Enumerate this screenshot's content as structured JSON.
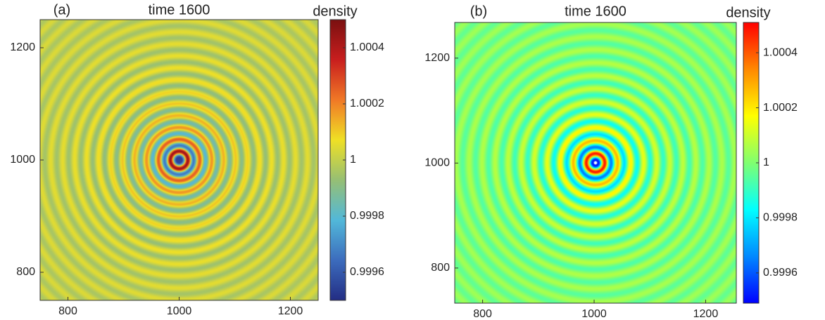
{
  "chart_data": [
    {
      "type": "heatmap",
      "panel_label": "(a)",
      "title": "time 1600",
      "colorbar_label": "density",
      "xlim": [
        750,
        1250
      ],
      "ylim": [
        750,
        1250
      ],
      "xticks": [
        800,
        1000,
        1200
      ],
      "yticks": [
        800,
        1000,
        1200
      ],
      "clim": [
        0.9995,
        1.0005
      ],
      "cticks": [
        0.9996,
        0.9998,
        1,
        1.0002,
        1.0004
      ],
      "colormap": [
        "#232d84",
        "#3c6cbd",
        "#52b8d9",
        "#96bf74",
        "#efe025",
        "#f07826",
        "#c81e1e",
        "#7a1010"
      ]
    },
    {
      "type": "heatmap",
      "panel_label": "(b)",
      "title": "time 1600",
      "colorbar_label": "density",
      "xlim": [
        750,
        1255
      ],
      "ylim": [
        733,
        1268
      ],
      "xticks": [
        800,
        1000,
        1200
      ],
      "yticks": [
        800,
        1000,
        1200
      ],
      "clim": [
        0.99949,
        1.00051
      ],
      "cticks": [
        0.9996,
        0.9998,
        1,
        1.0002,
        1.0004
      ],
      "colormap": [
        "#0000ff",
        "#0088ff",
        "#00ffff",
        "#80ff70",
        "#ffff00",
        "#ff8800",
        "#ff0000"
      ]
    }
  ]
}
